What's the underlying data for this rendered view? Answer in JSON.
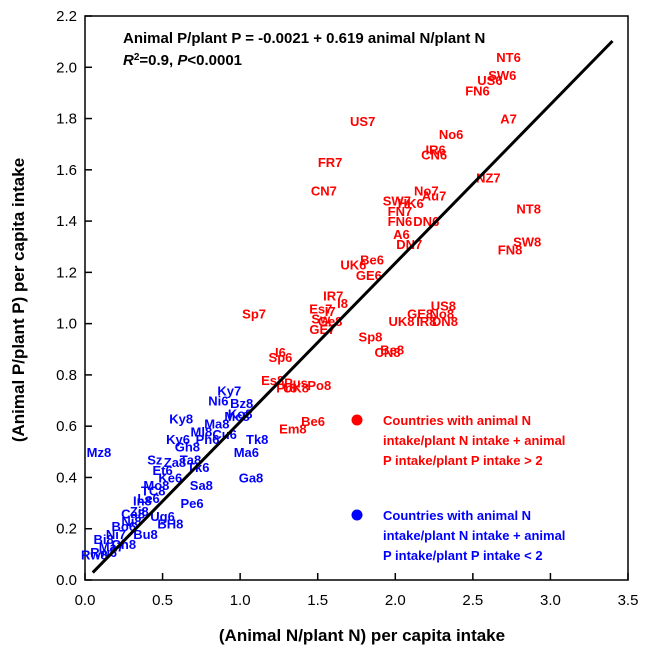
{
  "chart_data": {
    "type": "scatter",
    "xlabel": "(Animal N/plant N) per capita intake",
    "ylabel": "(Animal P/plant P) per capita intake",
    "xlim": [
      0,
      3.5
    ],
    "ylim": [
      0,
      2.2
    ],
    "xticks": [
      "0.0",
      "0.5",
      "1.0",
      "1.5",
      "2.0",
      "2.5",
      "3.0",
      "3.5"
    ],
    "yticks": [
      "0.0",
      "0.2",
      "0.4",
      "0.6",
      "0.8",
      "1.0",
      "1.2",
      "1.4",
      "1.6",
      "1.8",
      "2.0",
      "2.2"
    ],
    "equation_line1": "Animal P/plant P = -0.0021 + 0.619 animal N/plant N",
    "equation_line2": {
      "r": "R",
      "sup": "2",
      "rest1": "=0.9, ",
      "p": "P",
      "rest2": "<0.0001"
    },
    "regression": {
      "intercept": -0.0021,
      "slope": 0.619,
      "x_range": [
        0.05,
        3.4
      ],
      "color": "#000000"
    },
    "legend": [
      {
        "text": [
          "Countries with animal N",
          "intake/plant N intake + animal",
          "P intake/plant P intake > 2"
        ],
        "color": "#ff0000"
      },
      {
        "text": [
          "Countries with animal N",
          "intake/plant N intake + animal",
          "P intake/plant P intake < 2"
        ],
        "color": "#0000ff"
      }
    ],
    "series": [
      {
        "color": "#ff0000",
        "points": [
          {
            "label": "NT6",
            "x": 2.73,
            "y": 2.04
          },
          {
            "label": "SW6",
            "x": 2.69,
            "y": 1.97
          },
          {
            "label": "US6",
            "x": 2.61,
            "y": 1.95
          },
          {
            "label": "FN6",
            "x": 2.53,
            "y": 1.91
          },
          {
            "label": "A7",
            "x": 2.73,
            "y": 1.8
          },
          {
            "label": "US7",
            "x": 1.79,
            "y": 1.79
          },
          {
            "label": "No6",
            "x": 2.36,
            "y": 1.74
          },
          {
            "label": "IR6",
            "x": 2.26,
            "y": 1.68
          },
          {
            "label": "CN6",
            "x": 2.25,
            "y": 1.66
          },
          {
            "label": "FR7",
            "x": 1.58,
            "y": 1.63
          },
          {
            "label": "NZ7",
            "x": 2.6,
            "y": 1.57
          },
          {
            "label": "CN7",
            "x": 1.54,
            "y": 1.52
          },
          {
            "label": "No7",
            "x": 2.2,
            "y": 1.52
          },
          {
            "label": "Au7",
            "x": 2.25,
            "y": 1.5
          },
          {
            "label": "SW7",
            "x": 2.01,
            "y": 1.48
          },
          {
            "label": "HK6",
            "x": 2.1,
            "y": 1.47
          },
          {
            "label": "FN7",
            "x": 2.03,
            "y": 1.44
          },
          {
            "label": "NT8",
            "x": 2.86,
            "y": 1.45
          },
          {
            "label": "FN6",
            "x": 2.03,
            "y": 1.4
          },
          {
            "label": "DN6",
            "x": 2.2,
            "y": 1.4
          },
          {
            "label": "A6",
            "x": 2.04,
            "y": 1.35
          },
          {
            "label": "DN7",
            "x": 2.09,
            "y": 1.31
          },
          {
            "label": "SW8",
            "x": 2.85,
            "y": 1.32
          },
          {
            "label": "FN8",
            "x": 2.74,
            "y": 1.29
          },
          {
            "label": "Be6",
            "x": 1.85,
            "y": 1.25
          },
          {
            "label": "UK6",
            "x": 1.73,
            "y": 1.23
          },
          {
            "label": "GE6",
            "x": 1.83,
            "y": 1.19
          },
          {
            "label": "IR7",
            "x": 1.6,
            "y": 1.11
          },
          {
            "label": "I8",
            "x": 1.66,
            "y": 1.08
          },
          {
            "label": "Sp7",
            "x": 1.09,
            "y": 1.04
          },
          {
            "label": "Es7",
            "x": 1.52,
            "y": 1.06
          },
          {
            "label": "I7",
            "x": 1.58,
            "y": 1.05
          },
          {
            "label": "US8",
            "x": 2.31,
            "y": 1.07
          },
          {
            "label": "GE8",
            "x": 2.16,
            "y": 1.04
          },
          {
            "label": "No8",
            "x": 2.3,
            "y": 1.04
          },
          {
            "label": "Sw",
            "x": 1.52,
            "y": 1.02
          },
          {
            "label": "Ge8",
            "x": 1.58,
            "y": 1.01
          },
          {
            "label": "UK8",
            "x": 2.04,
            "y": 1.01
          },
          {
            "label": "IR8",
            "x": 2.2,
            "y": 1.01
          },
          {
            "label": "DN8",
            "x": 2.32,
            "y": 1.01
          },
          {
            "label": "GE7",
            "x": 1.53,
            "y": 0.98
          },
          {
            "label": "Sp8",
            "x": 1.84,
            "y": 0.95
          },
          {
            "label": "Be8",
            "x": 1.98,
            "y": 0.9
          },
          {
            "label": "CN8",
            "x": 1.95,
            "y": 0.89
          },
          {
            "label": "I6",
            "x": 1.26,
            "y": 0.89
          },
          {
            "label": "Sp6",
            "x": 1.26,
            "y": 0.87
          },
          {
            "label": "Es8",
            "x": 1.21,
            "y": 0.78
          },
          {
            "label": "Pus",
            "x": 1.36,
            "y": 0.77
          },
          {
            "label": "Po8",
            "x": 1.51,
            "y": 0.76
          },
          {
            "label": "Pr8",
            "x": 1.3,
            "y": 0.75
          },
          {
            "label": "UK8",
            "x": 1.36,
            "y": 0.75
          },
          {
            "label": "Be6",
            "x": 1.47,
            "y": 0.62
          },
          {
            "label": "Em8",
            "x": 1.34,
            "y": 0.59
          }
        ]
      },
      {
        "color": "#0000ff",
        "points": [
          {
            "label": "Ky7",
            "x": 0.93,
            "y": 0.74
          },
          {
            "label": "Ni6",
            "x": 0.86,
            "y": 0.7
          },
          {
            "label": "Bz8",
            "x": 1.01,
            "y": 0.69
          },
          {
            "label": "Mz8",
            "x": 0.09,
            "y": 0.5
          },
          {
            "label": "Sz",
            "x": 0.45,
            "y": 0.47
          },
          {
            "label": "Ga8",
            "x": 1.07,
            "y": 0.4
          },
          {
            "label": "Ma6",
            "x": 1.04,
            "y": 0.5
          },
          {
            "label": "Ko8",
            "x": 1.0,
            "y": 0.65
          },
          {
            "label": "Tk8",
            "x": 1.11,
            "y": 0.55
          },
          {
            "label": "Mc8",
            "x": 0.98,
            "y": 0.64
          },
          {
            "label": "Ky6",
            "x": 0.6,
            "y": 0.55
          },
          {
            "label": "Ml8",
            "x": 0.75,
            "y": 0.58
          },
          {
            "label": "TC8",
            "x": 0.44,
            "y": 0.35
          },
          {
            "label": "Tk6",
            "x": 0.73,
            "y": 0.44
          },
          {
            "label": "Sa8",
            "x": 0.75,
            "y": 0.37
          },
          {
            "label": "Ke6",
            "x": 0.55,
            "y": 0.4
          },
          {
            "label": "Pe6",
            "x": 0.69,
            "y": 0.3
          },
          {
            "label": "In8",
            "x": 0.37,
            "y": 0.31
          },
          {
            "label": "Ug6",
            "x": 0.5,
            "y": 0.25
          },
          {
            "label": "Ni8",
            "x": 0.3,
            "y": 0.23
          },
          {
            "label": "BH8",
            "x": 0.55,
            "y": 0.22
          },
          {
            "label": "Bu8",
            "x": 0.39,
            "y": 0.18
          },
          {
            "label": "Bi8",
            "x": 0.12,
            "y": 0.16
          },
          {
            "label": "Ch8",
            "x": 0.25,
            "y": 0.14
          },
          {
            "label": "Rw8",
            "x": 0.06,
            "y": 0.1
          },
          {
            "label": "Ky8",
            "x": 0.62,
            "y": 0.63
          },
          {
            "label": "Ma8",
            "x": 0.85,
            "y": 0.61
          },
          {
            "label": "Cu6",
            "x": 0.9,
            "y": 0.57
          },
          {
            "label": "Gh8",
            "x": 0.66,
            "y": 0.52
          },
          {
            "label": "Ph6",
            "x": 0.79,
            "y": 0.55
          },
          {
            "label": "Za8",
            "x": 0.58,
            "y": 0.46
          },
          {
            "label": "Et6",
            "x": 0.5,
            "y": 0.43
          },
          {
            "label": "Ta8",
            "x": 0.68,
            "y": 0.47
          },
          {
            "label": "Mo8",
            "x": 0.46,
            "y": 0.37
          },
          {
            "label": "Le6",
            "x": 0.41,
            "y": 0.32
          },
          {
            "label": "Zi8",
            "x": 0.35,
            "y": 0.27
          },
          {
            "label": "Ca8",
            "x": 0.31,
            "y": 0.26
          },
          {
            "label": "Bo6",
            "x": 0.25,
            "y": 0.21
          },
          {
            "label": "Ni7",
            "x": 0.2,
            "y": 0.18
          },
          {
            "label": "Ma7",
            "x": 0.17,
            "y": 0.13
          },
          {
            "label": "Rw6",
            "x": 0.12,
            "y": 0.11
          }
        ]
      }
    ]
  }
}
